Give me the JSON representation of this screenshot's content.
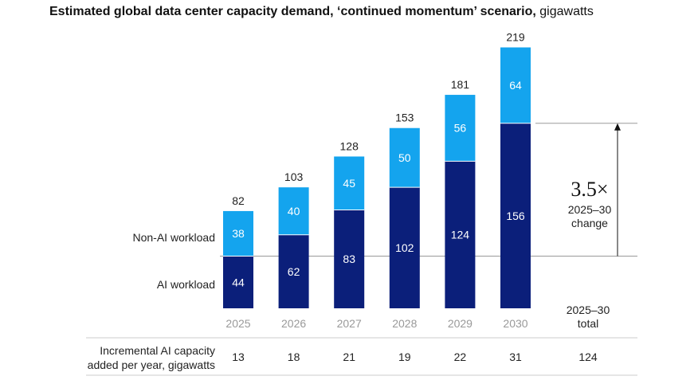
{
  "title": {
    "bold": "Estimated global data center capacity demand, ‘continued momentum’ scenario,",
    "unit": "gigawatts"
  },
  "colors": {
    "ai": "#0b1f7a",
    "non_ai": "#14a4ee",
    "rule": "#9a9a9a"
  },
  "chart_data": {
    "type": "bar",
    "stacked": true,
    "title": "Estimated global data center capacity demand, ‘continued momentum’ scenario, gigawatts",
    "categories": [
      "2025",
      "2026",
      "2027",
      "2028",
      "2029",
      "2030"
    ],
    "series": [
      {
        "name": "AI workload",
        "values": [
          44,
          62,
          83,
          102,
          124,
          156
        ]
      },
      {
        "name": "Non-AI workload",
        "values": [
          38,
          40,
          45,
          50,
          56,
          64
        ]
      }
    ],
    "totals": [
      "82",
      "103",
      "128",
      "153",
      "181",
      "219"
    ],
    "ylim": [
      0,
      219
    ],
    "annotation": {
      "multiplier": "3.5×",
      "line1": "2025–30",
      "line2": "change"
    },
    "summary_header": {
      "line1": "2025–30",
      "line2": "total"
    },
    "incremental": {
      "label_line1": "Incremental AI capacity",
      "label_line2": "added per year, gigawatts",
      "values": [
        "13",
        "18",
        "21",
        "19",
        "22",
        "31"
      ],
      "total": "124"
    }
  }
}
